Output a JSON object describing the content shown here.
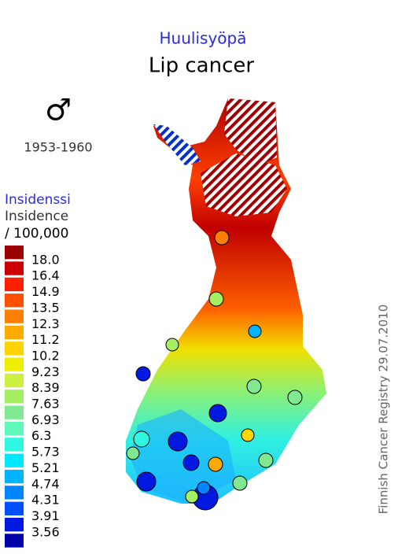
{
  "header": {
    "title_fi": "Huulisyöpä",
    "title_en": "Lip cancer"
  },
  "sex_symbol": "♂",
  "period": "1953-1960",
  "legend": {
    "title_fi": "Insidenssi",
    "title_en": "Insidence",
    "unit": "/ 100,000",
    "colors": [
      "#9b0000",
      "#cc0000",
      "#ff2000",
      "#ff5000",
      "#ff8000",
      "#ffaa00",
      "#ffd400",
      "#f0ee00",
      "#ccf040",
      "#a4f060",
      "#80e890",
      "#60f8b8",
      "#30f8e0",
      "#00e8ff",
      "#00b4ff",
      "#0084ff",
      "#0050ff",
      "#0018e0",
      "#0000a8"
    ],
    "breaks": [
      {
        "value": 18,
        "label": "18.0"
      },
      16.4,
      14.9,
      13.5,
      12.3,
      11.2,
      10.2,
      9.23,
      8.39,
      7.63,
      6.93,
      6.3,
      {
        "value": 5.73,
        "label": "5.73"
      },
      5.21,
      4.74,
      4.31,
      3.91,
      3.56
    ]
  },
  "credit": "Finnish Cancer Registry 29.07.2010"
}
